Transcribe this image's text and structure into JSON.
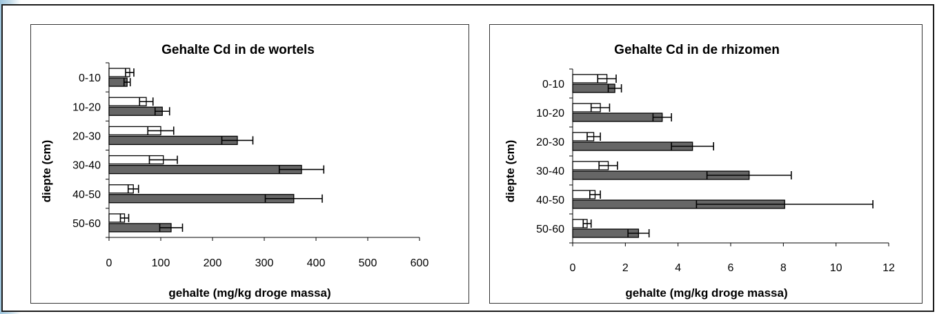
{
  "chart_data": [
    {
      "type": "bar",
      "orientation": "horizontal",
      "title": "Gehalte Cd in de wortels",
      "xlabel": "gehalte (mg/kg droge massa)",
      "ylabel": "diepte (cm)",
      "categories": [
        "0-10",
        "10-20",
        "20-30",
        "30-40",
        "40-50",
        "50-60"
      ],
      "xlim": [
        0,
        600
      ],
      "xticks": [
        0,
        100,
        200,
        300,
        400,
        500,
        600
      ],
      "grid": false,
      "series": [
        {
          "fill": "#ffffff",
          "values": [
            40,
            72,
            100,
            105,
            47,
            30
          ],
          "errors": [
            8,
            13,
            25,
            27,
            10,
            8
          ]
        },
        {
          "fill": "#666666",
          "values": [
            35,
            103,
            248,
            372,
            357,
            120
          ],
          "errors": [
            6,
            14,
            30,
            43,
            55,
            22
          ]
        }
      ]
    },
    {
      "type": "bar",
      "orientation": "horizontal",
      "title": "Gehalte Cd in de rhizomen",
      "xlabel": "gehalte (mg/kg droge massa)",
      "ylabel": "diepte (cm)",
      "categories": [
        "0-10",
        "10-20",
        "20-30",
        "30-40",
        "40-50",
        "50-60"
      ],
      "xlim": [
        0,
        12
      ],
      "xticks": [
        0,
        2,
        4,
        6,
        8,
        10,
        12
      ],
      "grid": false,
      "series": [
        {
          "fill": "#ffffff",
          "values": [
            1.3,
            1.05,
            0.8,
            1.35,
            0.85,
            0.55
          ],
          "errors": [
            0.35,
            0.35,
            0.25,
            0.35,
            0.2,
            0.15
          ]
        },
        {
          "fill": "#666666",
          "values": [
            1.6,
            3.4,
            4.55,
            6.7,
            8.05,
            2.5
          ],
          "errors": [
            0.25,
            0.35,
            0.8,
            1.6,
            3.35,
            0.4
          ]
        }
      ]
    }
  ]
}
